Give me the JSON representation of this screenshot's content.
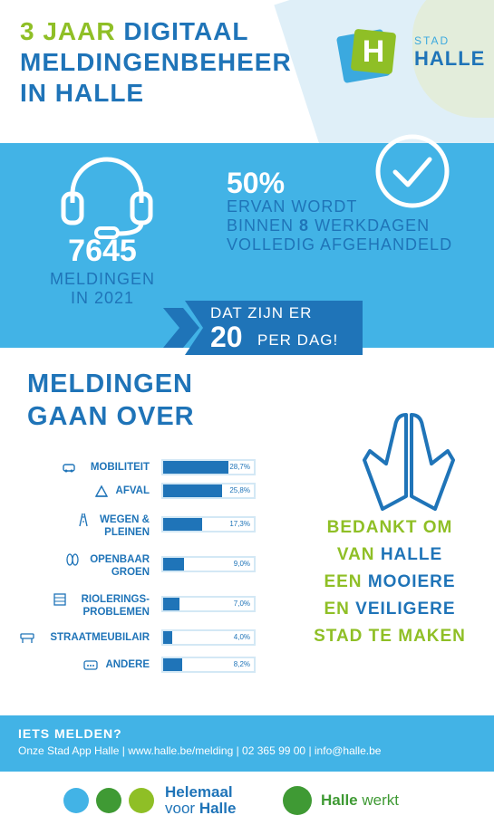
{
  "header": {
    "title_part1": "3 JAAR",
    "title_part2": "DIGITAAL",
    "title_line2": "MELDINGENBEHEER",
    "title_line3": "IN HALLE",
    "logo_letter": "H",
    "logo_stad": "STAD",
    "logo_halle": "HALLE"
  },
  "stats": {
    "count": "7645",
    "count_label_line1": "MELDINGEN",
    "count_label_line2": "IN 2021",
    "percent": "50%",
    "percent_line1": "ERVAN WORDT",
    "percent_line2_pre": "BINNEN",
    "percent_line2_num": "8",
    "percent_line2_post": "WERKDAGEN",
    "percent_line3": "VOLLEDIG AFGEHANDELD",
    "per_day_line1": "DAT ZIJN ER",
    "per_day_number": "20",
    "per_day_line2": "PER DAG!"
  },
  "section": {
    "title_line1": "MELDINGEN",
    "title_line2": "GAAN OVER"
  },
  "categories": [
    {
      "label": "MOBILITEIT",
      "value_text": "28,7%",
      "value": 28.7,
      "icon": "car-icon"
    },
    {
      "label": "AFVAL",
      "value_text": "25,8%",
      "value": 25.8,
      "icon": "waste-icon"
    },
    {
      "label": "WEGEN & PLEINEN",
      "label_line1": "WEGEN &",
      "label_line2": "PLEINEN",
      "value_text": "17,3%",
      "value": 17.3,
      "icon": "road-icon"
    },
    {
      "label": "OPENBAAR GROEN",
      "label_line1": "OPENBAAR",
      "label_line2": "GROEN",
      "value_text": "9,0%",
      "value": 9.0,
      "icon": "leaf-icon"
    },
    {
      "label": "RIOLERINGS-PROBLEMEN",
      "label_line1": "RIOLERINGS-",
      "label_line2": "PROBLEMEN",
      "value_text": "7,0%",
      "value": 7.0,
      "icon": "sewer-icon"
    },
    {
      "label": "STRAATMEUBILAIR",
      "value_text": "4,0%",
      "value": 4.0,
      "icon": "bench-icon"
    },
    {
      "label": "ANDERE",
      "value_text": "8,2%",
      "value": 8.2,
      "icon": "dots-icon"
    }
  ],
  "thanks": {
    "line1": "BEDANKT OM",
    "line2_a": "VAN",
    "line2_b": "HALLE",
    "line3_a": "EEN",
    "line3_b": "MOOIERE",
    "line4_a": "EN",
    "line4_b": "VEILIGERE",
    "line5": "STAD TE MAKEN"
  },
  "footer": {
    "title": "IETS MELDEN?",
    "contact": "Onze Stad App Halle | www.halle.be/melding | 02 365 99 00 | info@halle.be"
  },
  "brand": {
    "helemaal_line1": "Helemaal",
    "helemaal_line2_pre": "voor",
    "helemaal_line2_b": "Halle",
    "werkt_b": "Halle",
    "werkt_post": "werkt"
  },
  "colors": {
    "blue": "#1f74b8",
    "light_blue": "#42b3e6",
    "green": "#8fbf26"
  }
}
